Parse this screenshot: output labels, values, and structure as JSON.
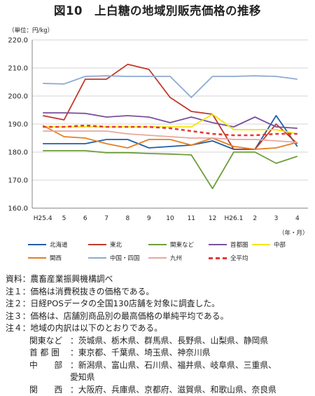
{
  "title": "図10　上白糖の地域別販売価格の推移",
  "unit_label": "（単位：円/kg）",
  "x_axis_note": "（年・月）",
  "colors": {
    "hokkaido": "#1f5fa6",
    "tohoku": "#c0392b",
    "kanto": "#6e9e3a",
    "shutoken": "#7b4f9d",
    "chubu": "#f2e600",
    "kansai": "#e67e22",
    "chugoku_shikoku": "#8eaad1",
    "kyushu": "#e8a7a0",
    "national_avg": "#e53935"
  },
  "chart_data": {
    "type": "line",
    "categories": [
      "H25.4",
      "5",
      "6",
      "7",
      "8",
      "9",
      "10",
      "11",
      "12",
      "H26.1",
      "2",
      "3",
      "4"
    ],
    "ylim": [
      160.0,
      220.0
    ],
    "yticks": [
      "160.0",
      "170.0",
      "180.0",
      "190.0",
      "200.0",
      "210.0",
      "220.0"
    ],
    "grid": true,
    "legend_position": "bottom",
    "series": [
      {
        "name": "北海道",
        "key": "hokkaido",
        "dashed": false,
        "values": [
          183.0,
          183.0,
          183.0,
          184.5,
          184.5,
          181.5,
          182.0,
          182.5,
          184.0,
          181.0,
          181.0,
          193.0,
          182.0
        ]
      },
      {
        "name": "東北",
        "key": "tohoku",
        "dashed": false,
        "values": [
          193.0,
          191.5,
          206.0,
          206.0,
          211.3,
          209.5,
          199.5,
          194.5,
          193.5,
          181.0,
          181.0,
          190.0,
          183.0
        ]
      },
      {
        "name": "関東など",
        "key": "kanto",
        "dashed": false,
        "values": [
          180.5,
          180.5,
          180.5,
          179.8,
          179.8,
          179.5,
          179.3,
          179.0,
          167.0,
          180.0,
          180.0,
          176.0,
          178.5
        ]
      },
      {
        "name": "首都圏",
        "key": "shutoken",
        "dashed": false,
        "values": [
          194.0,
          194.0,
          193.8,
          192.5,
          193.0,
          192.5,
          190.5,
          192.5,
          190.5,
          189.0,
          192.5,
          189.0,
          188.5
        ]
      },
      {
        "name": "中部",
        "key": "chubu",
        "dashed": false,
        "values": [
          189.0,
          189.0,
          189.0,
          189.0,
          189.0,
          189.0,
          189.0,
          189.0,
          193.5,
          188.0,
          188.0,
          188.0,
          186.5
        ]
      },
      {
        "name": "関西",
        "key": "kansai",
        "dashed": false,
        "values": [
          189.5,
          185.5,
          185.0,
          183.0,
          181.5,
          184.5,
          184.5,
          182.5,
          185.0,
          182.0,
          181.0,
          181.5,
          183.5
        ]
      },
      {
        "name": "中国・四国",
        "key": "chugoku_shikoku",
        "dashed": false,
        "values": [
          204.5,
          204.3,
          207.0,
          207.2,
          207.0,
          207.0,
          207.0,
          199.5,
          207.0,
          207.0,
          207.2,
          207.0,
          206.0
        ]
      },
      {
        "name": "九州",
        "key": "kyushu",
        "dashed": false,
        "values": [
          187.5,
          187.5,
          187.5,
          187.5,
          186.5,
          186.0,
          185.5,
          185.0,
          185.0,
          184.5,
          184.5,
          184.0,
          183.5
        ]
      },
      {
        "name": "全平均",
        "key": "national_avg",
        "dashed": true,
        "values": [
          189.0,
          189.0,
          189.5,
          189.0,
          189.0,
          189.0,
          188.5,
          187.5,
          186.5,
          186.0,
          186.0,
          186.5,
          186.5
        ]
      }
    ]
  },
  "notes": {
    "source": "資料：農畜産業振興機構調べ",
    "note1": "注１：価格は消費税抜きの価格である。",
    "note2": "注２：日経POSデータの全国130店舗を対象に調査した。",
    "note3": "注３：価格は、店舗別商品別の最高価格の単純平均である。",
    "note4": "注４：地域の内訳は以下のとおりである。",
    "regions": [
      {
        "name": "関東など",
        "members": "：茨城県、栃木県、群馬県、長野県、山梨県、静岡県"
      },
      {
        "name": "首 都 圏",
        "members": "：東京都、千葉県、埼玉県、神奈川県"
      },
      {
        "name": "中　　部",
        "members": "：新潟県、富山県、石川県、福井県、岐阜県、三重県、"
      },
      {
        "name": "",
        "members": "愛知県"
      },
      {
        "name": "関　　西",
        "members": "：大阪府、兵庫県、京都府、滋賀県、和歌山県、奈良県"
      }
    ]
  }
}
